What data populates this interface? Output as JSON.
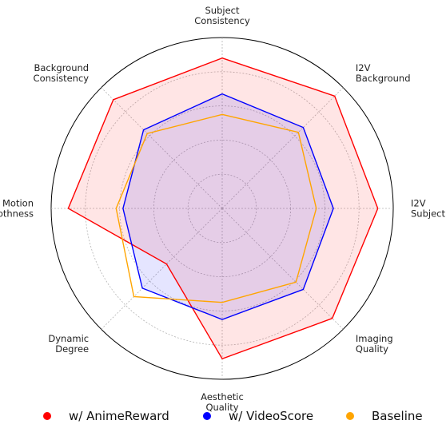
{
  "chart_data": {
    "type": "radar",
    "axes": [
      [
        "Subject",
        "Consistency"
      ],
      [
        "I2V",
        "Background"
      ],
      [
        "I2V",
        "Subject"
      ],
      [
        "Imaging",
        "Quality"
      ],
      [
        "Aesthetic",
        "Quality"
      ],
      [
        "Dynamic",
        "Degree"
      ],
      [
        "Motion",
        "Smoothness"
      ],
      [
        "Background",
        "Consistency"
      ]
    ],
    "rlim": [
      0,
      1
    ],
    "rings": [
      0.2,
      0.4,
      0.6,
      0.8,
      1.0
    ],
    "grid": true,
    "legend_position": "bottom",
    "series": [
      {
        "name": "w/ AnimeReward",
        "color": "#ff0000",
        "fill": "#ff0000",
        "fill_opacity": 0.1,
        "values": [
          0.88,
          0.93,
          0.91,
          0.91,
          0.88,
          0.46,
          0.9,
          0.9
        ]
      },
      {
        "name": "w/ VideoScore",
        "color": "#0000ff",
        "fill": "#0000ff",
        "fill_opacity": 0.1,
        "values": [
          0.67,
          0.67,
          0.65,
          0.67,
          0.65,
          0.66,
          0.58,
          0.65
        ]
      },
      {
        "name": "Baseline",
        "color": "#ffa500",
        "fill": "#ffa500",
        "fill_opacity": 0.0,
        "values": [
          0.55,
          0.63,
          0.55,
          0.61,
          0.55,
          0.73,
          0.62,
          0.62
        ]
      }
    ]
  }
}
